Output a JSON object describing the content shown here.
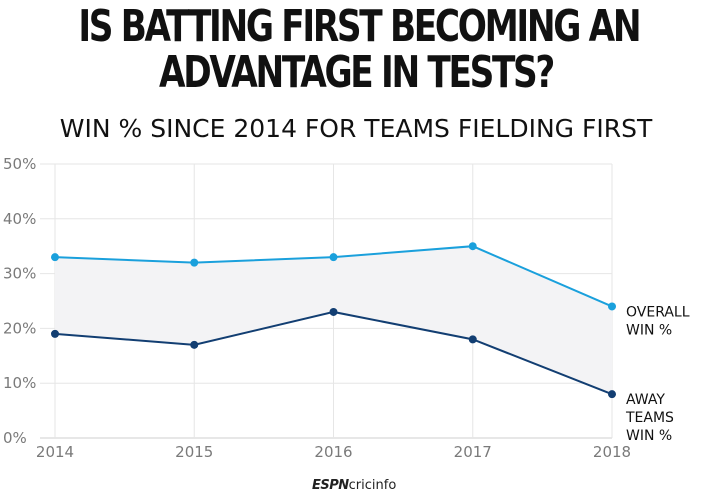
{
  "chart_data": {
    "type": "line",
    "title": [
      "IS BATTING FIRST BECOMING AN",
      "ADVANTAGE IN TESTS?"
    ],
    "subtitle": "WIN % SINCE 2014 FOR TEAMS FIELDING FIRST",
    "x": [
      "2014",
      "2015",
      "2016",
      "2017",
      "2018"
    ],
    "y_ticks": [
      "0%",
      "10%",
      "20%",
      "30%",
      "40%",
      "50%"
    ],
    "ylim": [
      0,
      50
    ],
    "grid": true,
    "series": [
      {
        "name": [
          "OVERALL",
          "WIN %"
        ],
        "values": [
          33,
          32,
          33,
          35,
          24
        ],
        "color": "#1aa0dc"
      },
      {
        "name": [
          "AWAY",
          "TEAMS",
          "WIN %"
        ],
        "values": [
          19,
          17,
          23,
          18,
          8
        ],
        "color": "#123e72"
      }
    ],
    "band_fill": "#f3f3f5"
  },
  "branding": {
    "espn": "ESPN",
    "site": "cricinfo"
  }
}
